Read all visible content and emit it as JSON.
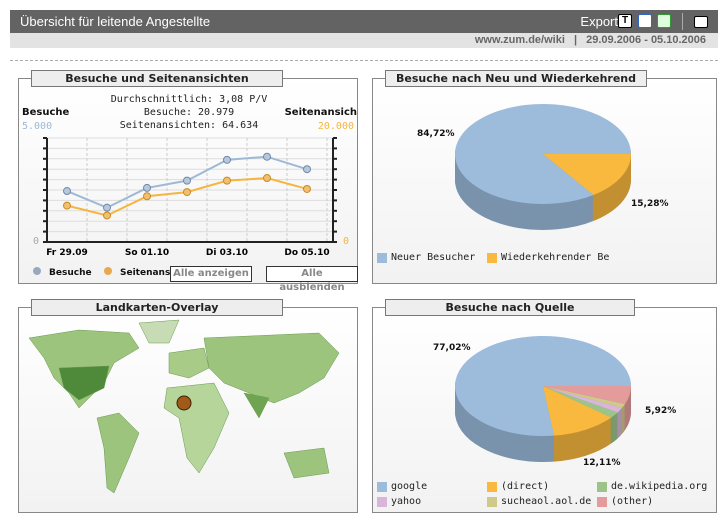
{
  "header": {
    "title": "Übersicht für leitende Angestellte",
    "export_label": "Export",
    "icons": [
      "text-export-icon",
      "word-export-icon",
      "excel-export-icon",
      "print-icon"
    ]
  },
  "subheader": {
    "site": "www.zum.de/wiki",
    "separator": "|",
    "daterange": "29.09.2006 - 05.10.2006"
  },
  "chart_data": [
    {
      "type": "line",
      "title": "Besuche und Seitenansichten",
      "summary": [
        "Durchschnittlich: 3,08 P/V",
        "Besuche: 20.979",
        "Seitenansichten: 64.634"
      ],
      "left_axis": {
        "label": "Besuche",
        "max_label": "5.000",
        "min_label": "0",
        "range": [
          0,
          5000
        ]
      },
      "right_axis": {
        "label": "Seitenansich",
        "max_label": "20.000",
        "min_label": "0",
        "range": [
          0,
          20000
        ]
      },
      "x": [
        "29.09",
        "30.09",
        "01.10",
        "02.10",
        "03.10",
        "04.10",
        "05.10"
      ],
      "tick_labels": [
        "Fr 29.09",
        "So 01.10",
        "Di 03.10",
        "Do 05.10"
      ],
      "series": [
        {
          "name": "Besuche",
          "axis": "left",
          "color": "#9db9d6",
          "values": [
            2450,
            1650,
            2600,
            2950,
            3950,
            4100,
            3500
          ]
        },
        {
          "name": "Seitenansich",
          "axis": "right",
          "color": "#f5b53f",
          "values": [
            7000,
            5100,
            8800,
            9600,
            11800,
            12300,
            10200
          ]
        }
      ],
      "grid": true,
      "buttons": [
        "Alle anzeigen",
        "Alle ausblenden"
      ]
    },
    {
      "type": "pie",
      "title": "Besuche nach Neu und Wiederkehrend",
      "slices": [
        {
          "name": "Neuer Besucher",
          "value": 84.72,
          "label": "84,72%",
          "color": "#9dbcdc"
        },
        {
          "name": "Wiederkehrender Be",
          "value": 15.28,
          "label": "15,28%",
          "color": "#f9b93f"
        }
      ]
    },
    {
      "type": "pie",
      "title": "Besuche nach Quelle",
      "slices": [
        {
          "name": "google",
          "value": 77.02,
          "label": "77,02%",
          "color": "#9dbcdc"
        },
        {
          "name": "(direct)",
          "value": 12.11,
          "label": "12,11%",
          "color": "#f9b93f"
        },
        {
          "name": "de.wikipedia.org",
          "value": 2.0,
          "color": "#9cc48a"
        },
        {
          "name": "yahoo",
          "value": 1.6,
          "color": "#d9b5d9"
        },
        {
          "name": "sucheaol.aol.de",
          "value": 1.35,
          "color": "#cfc98a"
        },
        {
          "name": "(other)",
          "value": 5.92,
          "label": "5,92%",
          "color": "#e39b9b"
        }
      ]
    }
  ],
  "map": {
    "title": "Landkarten-Overlay"
  }
}
